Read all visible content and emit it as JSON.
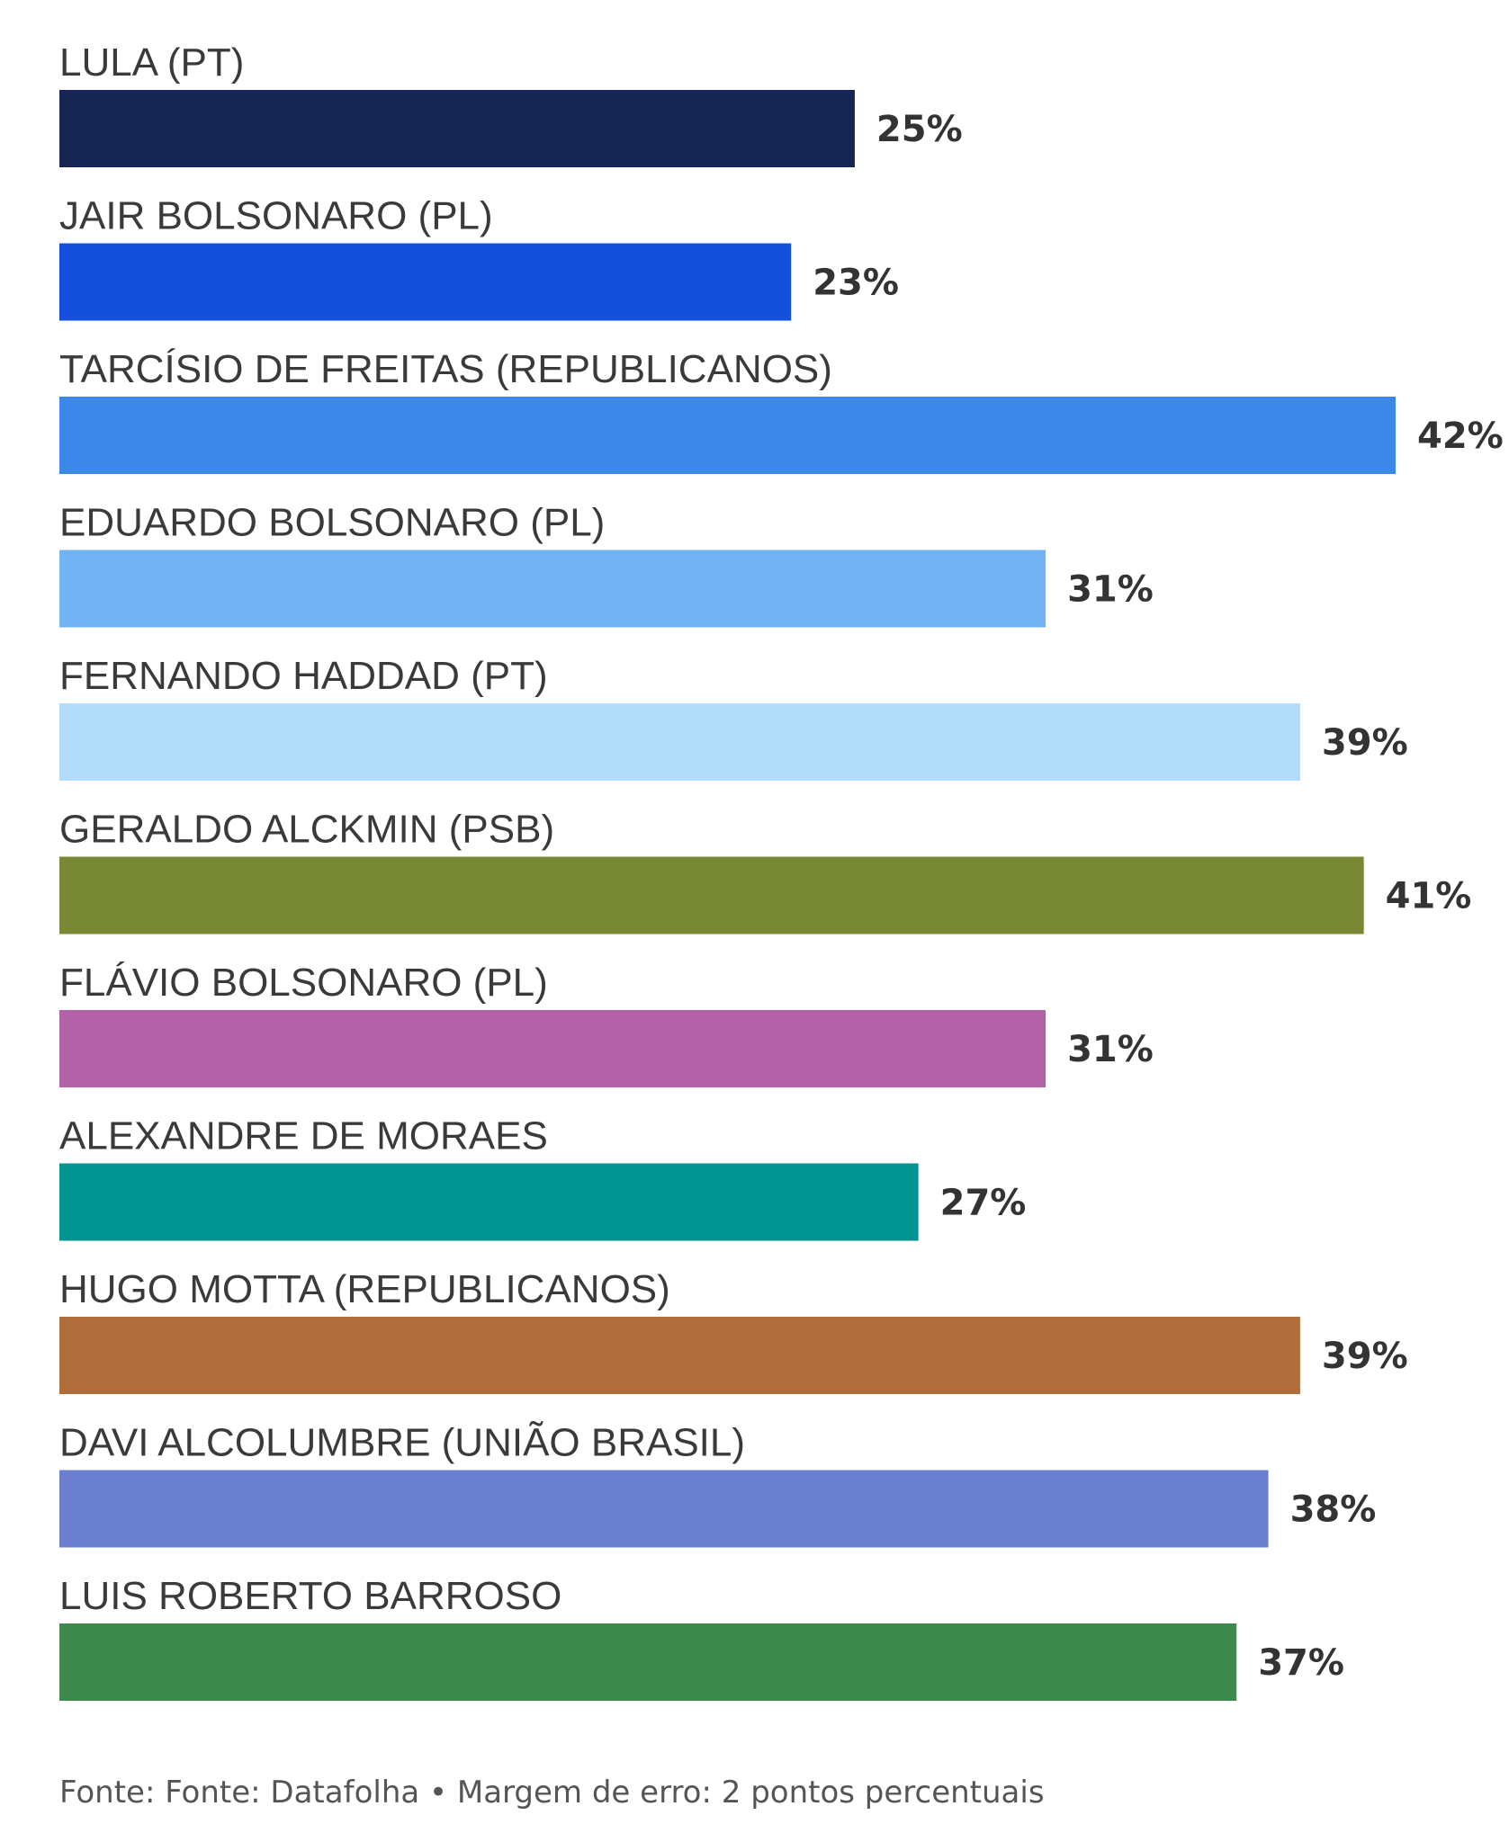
{
  "chart_data": {
    "type": "bar",
    "orientation": "horizontal",
    "categories": [
      "LULA (PT)",
      "JAIR BOLSONARO (PL)",
      "TARCÍSIO DE FREITAS (REPUBLICANOS)",
      "EDUARDO BOLSONARO (PL)",
      "FERNANDO HADDAD (PT)",
      "GERALDO ALCKMIN (PSB)",
      "FLÁVIO BOLSONARO (PL)",
      "ALEXANDRE DE MORAES",
      "HUGO MOTTA (REPUBLICANOS)",
      "DAVI ALCOLUMBRE (UNIÃO BRASIL)",
      "LUIS ROBERTO BARROSO"
    ],
    "values": [
      25,
      23,
      42,
      31,
      39,
      41,
      31,
      27,
      39,
      38,
      37
    ],
    "value_labels": [
      "25%",
      "23%",
      "42%",
      "31%",
      "39%",
      "41%",
      "31%",
      "27%",
      "39%",
      "38%",
      "37%"
    ],
    "colors": [
      "#172554",
      "#1450dc",
      "#3b88e8",
      "#72b3f3",
      "#b3dbfa",
      "#798834",
      "#b462a7",
      "#00938f",
      "#b06e3d",
      "#6a7fce",
      "#3e8a4c"
    ],
    "xlim": [
      0,
      42
    ],
    "source": "Fonte: Fonte: Datafolha • Margem de erro: 2 pontos percentuais",
    "grid": false,
    "legend": "none"
  }
}
